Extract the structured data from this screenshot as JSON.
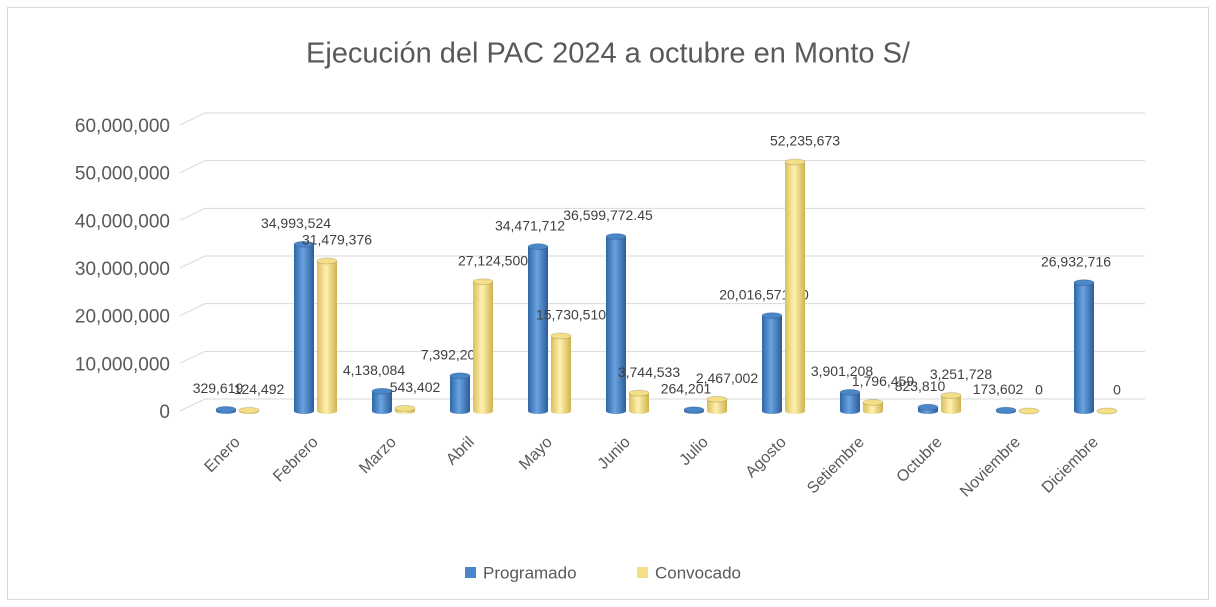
{
  "chart_data": {
    "type": "bar",
    "title": "Ejecución del PAC 2024 a octubre en Monto S/",
    "categories": [
      "Enero",
      "Febrero",
      "Marzo",
      "Abril",
      "Mayo",
      "Junio",
      "Julio",
      "Agosto",
      "Setiembre",
      "Octubre",
      "Noviembre",
      "Diciembre"
    ],
    "series": [
      {
        "name": "Programado",
        "color": "#4a86c8",
        "values": [
          329619,
          34993524,
          4138084,
          7392208,
          34471712,
          36599772.45,
          264201,
          20016571.5,
          3901208,
          823810,
          173602,
          26932716
        ],
        "value_labels": [
          "329,619",
          "34,993,524",
          "4,138,084",
          "7,392,208",
          "34,471,712",
          "36,599,772.45",
          "264,201",
          "20,016,571.50",
          "3,901,208",
          "823,810",
          "173,602",
          "26,932,716"
        ]
      },
      {
        "name": "Convocado",
        "color": "#f5df86",
        "values": [
          124492,
          31479376,
          543402,
          27124500,
          15730510,
          3744533,
          2467002,
          52235673,
          1796459,
          3251728,
          0,
          0
        ],
        "value_labels": [
          "124,492",
          "31,479,376",
          "543,402",
          "27,124,500",
          "15,730,510",
          "3,744,533",
          "2,467,002",
          "52,235,673",
          "1,796,459",
          "3,251,728",
          "0",
          "0"
        ]
      }
    ],
    "ylim": [
      0,
      60000000
    ],
    "yticks": [
      0,
      {
        "value": 10000000,
        "label": "10,000,000"
      },
      {
        "value": 20000000,
        "label": "20,000,000"
      },
      {
        "value": 30000000,
        "label": "30,000,000"
      },
      {
        "value": 40000000,
        "label": "40,000,000"
      },
      {
        "value": 50000000,
        "label": "50,000,000"
      },
      {
        "value": 60000000,
        "label": "60,000,000"
      }
    ],
    "grid": true,
    "legend": "bottom"
  }
}
